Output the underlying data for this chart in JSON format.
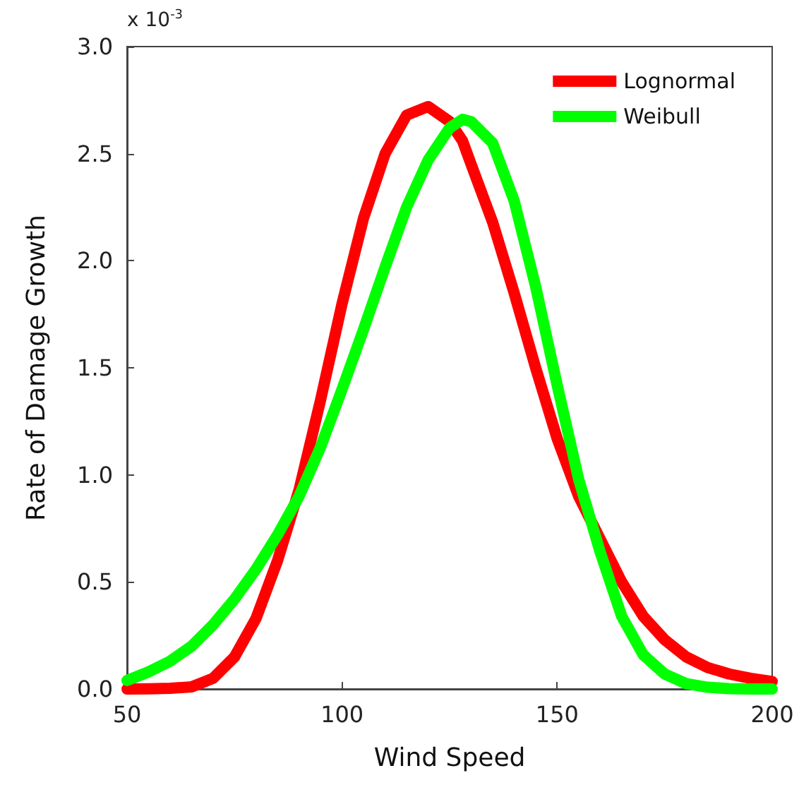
{
  "chart_data": {
    "type": "line",
    "xlabel": "Wind Speed",
    "ylabel": "Rate of Damage Growth",
    "annotations": [
      "x 10$^{-3}$"
    ],
    "xlim": [
      50,
      200
    ],
    "xticks": [
      50,
      100,
      150,
      200
    ],
    "ylim": [
      0,
      3.0
    ],
    "yticks": [
      {
        "value": 0,
        "label": "0.0"
      },
      {
        "value": 0.5,
        "label": "0.5"
      },
      {
        "value": 1,
        "label": "1.0"
      },
      {
        "value": 1.5,
        "label": "1.5"
      },
      {
        "value": 2,
        "label": "2.0"
      },
      {
        "value": 2.5,
        "label": "2.5"
      },
      {
        "value": 3,
        "label": "3.0"
      }
    ],
    "grid": false,
    "legend": "top right",
    "marker": "none",
    "line_style": "solid",
    "x": [
      50,
      55,
      60,
      65,
      70,
      75,
      80,
      85,
      90,
      95,
      100,
      105,
      110,
      115,
      120,
      125,
      128,
      130,
      135,
      140,
      145,
      150,
      155,
      160,
      165,
      170,
      175,
      180,
      185,
      190,
      195,
      200
    ],
    "series": [
      {
        "name": "Lognormal",
        "color": "#ff0000",
        "values": [
          0,
          0.001,
          0.003,
          0.01,
          0.05,
          0.15,
          0.33,
          0.6,
          0.93,
          1.35,
          1.8,
          2.2,
          2.5,
          2.68,
          2.72,
          2.65,
          2.56,
          2.45,
          2.18,
          1.85,
          1.5,
          1.17,
          0.9,
          0.7,
          0.5,
          0.34,
          0.23,
          0.15,
          0.1,
          0.07,
          0.05,
          0.035
        ]
      },
      {
        "name": "Weibull",
        "color": "#00ff00",
        "values": [
          0.04,
          0.08,
          0.13,
          0.2,
          0.3,
          0.42,
          0.56,
          0.72,
          0.9,
          1.13,
          1.4,
          1.68,
          1.97,
          2.25,
          2.47,
          2.62,
          2.66,
          2.65,
          2.55,
          2.28,
          1.88,
          1.42,
          0.98,
          0.64,
          0.34,
          0.16,
          0.07,
          0.025,
          0.008,
          0.002,
          0,
          0
        ]
      }
    ]
  }
}
